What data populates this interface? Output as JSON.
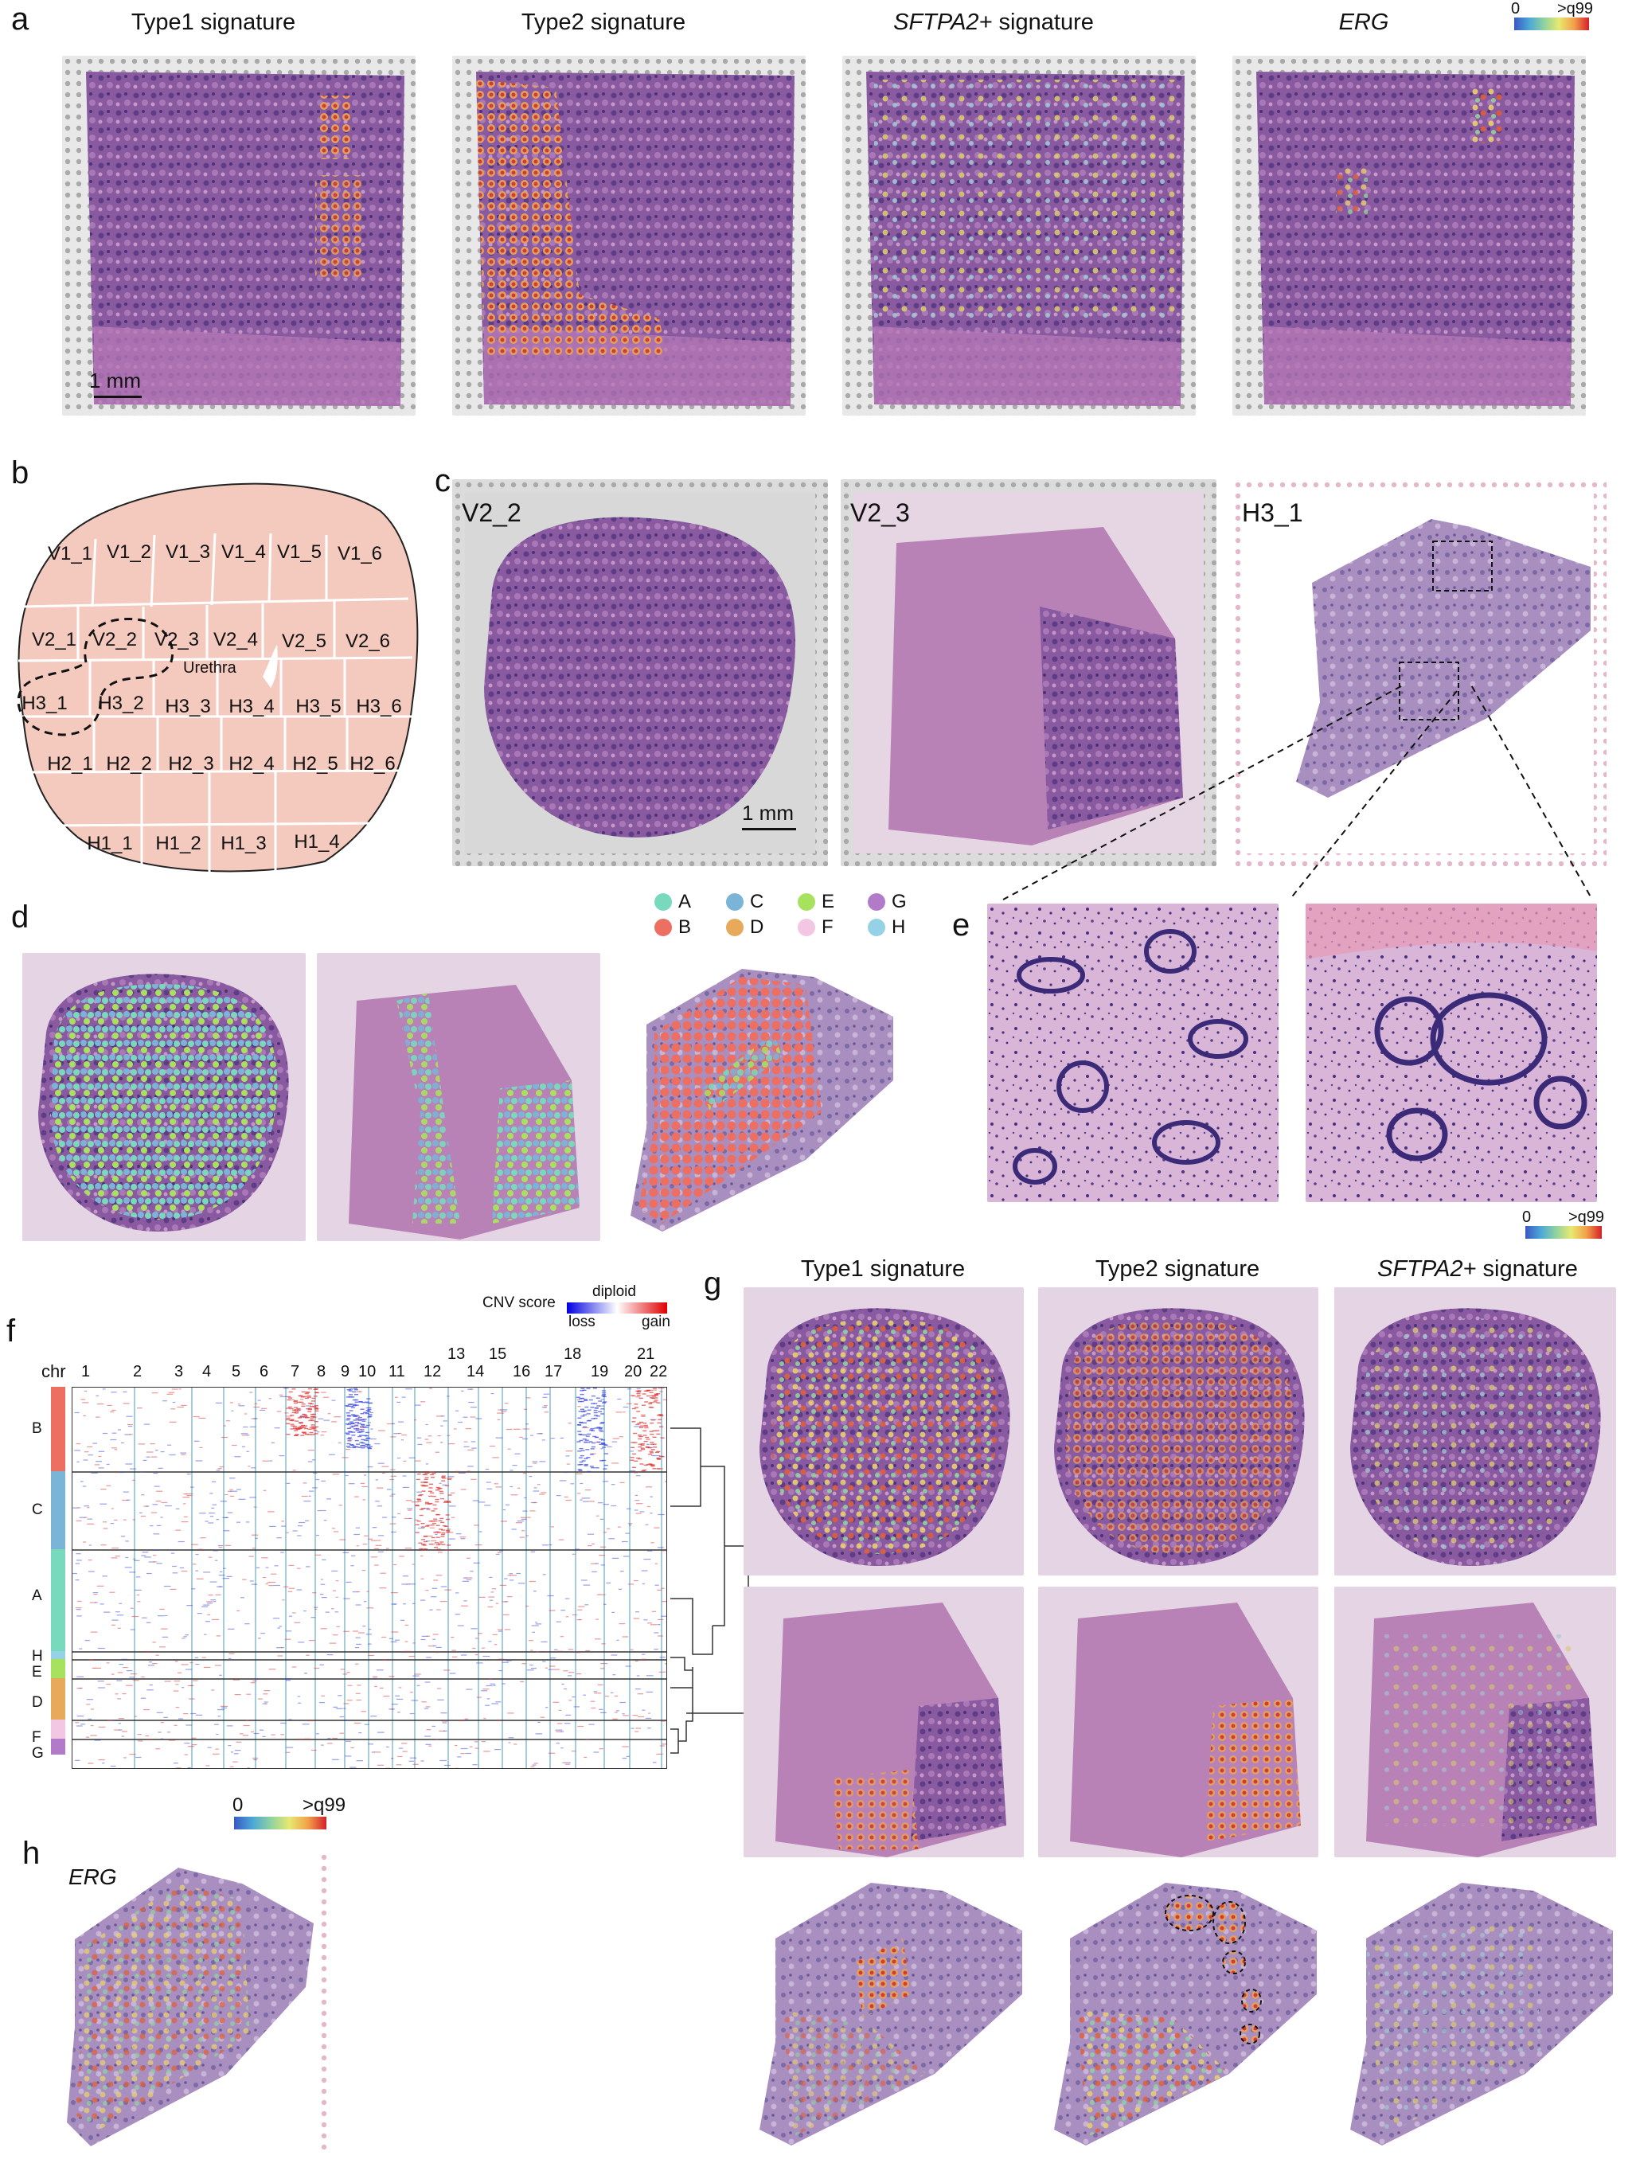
{
  "panel_letters": {
    "a": "a",
    "b": "b",
    "c": "c",
    "d": "d",
    "e": "e",
    "f": "f",
    "g": "g",
    "h": "h"
  },
  "panel_a": {
    "titles": [
      {
        "pre": "",
        "ital": "",
        "post": "Type1 signature"
      },
      {
        "pre": "",
        "ital": "",
        "post": "Type2 signature"
      },
      {
        "pre": "",
        "ital": "SFTPA2+",
        "post": " signature"
      },
      {
        "pre": "",
        "ital": "ERG",
        "post": ""
      }
    ],
    "scalebar": "1 mm",
    "colorbar": {
      "min": "0",
      "max": ">q99"
    }
  },
  "panel_b": {
    "sections": [
      "V1_1",
      "V1_2",
      "V1_3",
      "V1_4",
      "V1_5",
      "V1_6",
      "V2_1",
      "V2_2",
      "V2_3",
      "V2_4",
      "V2_5",
      "V2_6",
      "H3_1",
      "H3_2",
      "H3_3",
      "H3_4",
      "H3_5",
      "H3_6",
      "H2_1",
      "H2_2",
      "H2_3",
      "H2_4",
      "H2_5",
      "H2_6",
      "H1_1",
      "H1_2",
      "H1_3",
      "H1_4"
    ],
    "urethra": "Urethra"
  },
  "panel_c": {
    "labels": [
      "V2_2",
      "V2_3",
      "H3_1"
    ],
    "scalebar": "1 mm"
  },
  "panel_d": {
    "legend": [
      {
        "key": "A",
        "color": "#79d9bd"
      },
      {
        "key": "C",
        "color": "#7ab4d6"
      },
      {
        "key": "E",
        "color": "#a7e25f"
      },
      {
        "key": "G",
        "color": "#b27bc9"
      },
      {
        "key": "B",
        "color": "#ec6f62"
      },
      {
        "key": "D",
        "color": "#e7a95a"
      },
      {
        "key": "F",
        "color": "#f3c6e3"
      },
      {
        "key": "H",
        "color": "#95d2e6"
      }
    ]
  },
  "panel_e": {
    "colorbar": {
      "min": "0",
      "max": ">q99"
    }
  },
  "panel_f": {
    "cnv_title": "CNV score",
    "diploid": "diploid",
    "loss": "loss",
    "gain": "gain",
    "chr_label": "chr",
    "chromosomes": [
      "1",
      "2",
      "3",
      "4",
      "5",
      "6",
      "7",
      "8",
      "9",
      "10",
      "11",
      "12",
      "13",
      "14",
      "15",
      "16",
      "17",
      "18",
      "19",
      "20",
      "21",
      "22"
    ],
    "groups": [
      "B",
      "C",
      "A",
      "H",
      "E",
      "D",
      "F",
      "G"
    ]
  },
  "panel_g": {
    "titles": [
      {
        "ital": "",
        "post": "Type1 signature"
      },
      {
        "ital": "",
        "post": "Type2 signature"
      },
      {
        "ital": "SFTPA2+",
        "post": " signature"
      }
    ]
  },
  "panel_h": {
    "gene": "ERG",
    "colorbar": {
      "min": "0",
      "max": ">q99"
    }
  }
}
